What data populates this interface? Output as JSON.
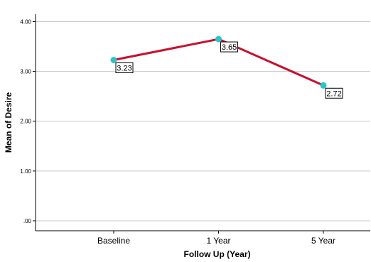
{
  "chart_data": {
    "type": "line",
    "title": "",
    "xlabel": "Follow Up (Year)",
    "ylabel": "Mean of Desire",
    "categories": [
      "Baseline",
      "1 Year",
      "5 Year"
    ],
    "series": [
      {
        "values": [
          3.23,
          3.65,
          2.72
        ]
      }
    ],
    "data_labels": [
      "3.23",
      "3.65",
      "2.72"
    ],
    "y_ticks": [
      {
        "value": 0,
        "label": ".00"
      },
      {
        "value": 1,
        "label": "1.00"
      },
      {
        "value": 2,
        "label": "2.00"
      },
      {
        "value": 3,
        "label": "3.00"
      },
      {
        "value": 4,
        "label": "4.00"
      }
    ],
    "ylim": [
      -0.2,
      4.15
    ],
    "grid": true,
    "colors": {
      "line": "#c8102e",
      "marker": "#2ec4c4",
      "grid": "#c8c8c8"
    }
  }
}
